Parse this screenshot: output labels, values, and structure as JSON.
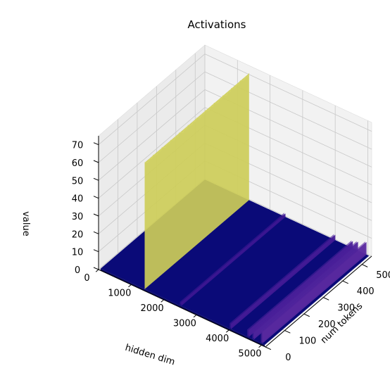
{
  "chart_data": {
    "type": "surface3d",
    "title": "Activations",
    "xlabel": "hidden dim",
    "ylabel": "num tokens",
    "zlabel": "value",
    "xlim": [
      0,
      5120
    ],
    "ylim": [
      0,
      550
    ],
    "zlim": [
      0,
      75
    ],
    "x_ticks": [
      0,
      1000,
      2000,
      3000,
      4000,
      5000
    ],
    "y_ticks": [
      0,
      100,
      200,
      300,
      400,
      500
    ],
    "z_ticks": [
      0,
      10,
      20,
      30,
      40,
      50,
      60,
      70
    ],
    "grid": true,
    "colormap": "plasma",
    "base_value": 1,
    "spikes": [
      {
        "x": 1415,
        "value": 72
      },
      {
        "x": 2533,
        "value": 3
      },
      {
        "x": 4062,
        "value": 4
      },
      {
        "x": 4600,
        "value": 5
      },
      {
        "x": 4760,
        "value": 6
      },
      {
        "x": 5020,
        "value": 8
      }
    ],
    "colors": {
      "low": "#0d0887",
      "mid": "#6a00a8",
      "high": "#f0f921",
      "base": "#0a0a78"
    }
  }
}
